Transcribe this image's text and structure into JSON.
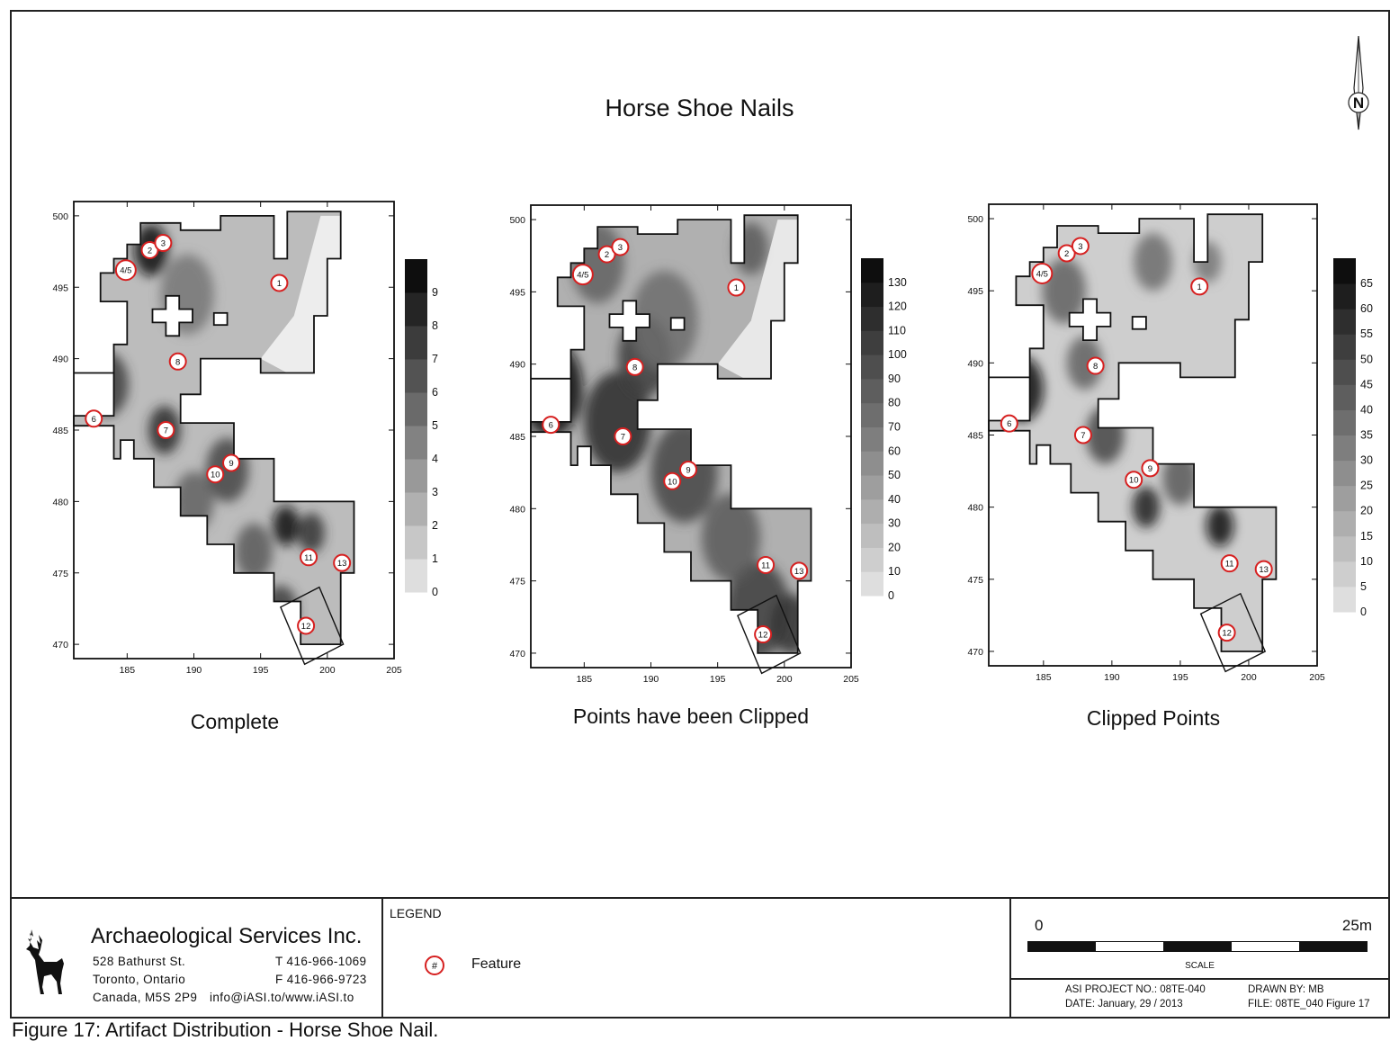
{
  "title": "Horse Shoe Nails",
  "panels": [
    {
      "caption": "Complete",
      "colorbar": {
        "ticks": [
          0,
          1,
          2,
          3,
          4,
          5,
          6,
          7,
          8,
          9
        ]
      }
    },
    {
      "caption": "Points have been Clipped",
      "colorbar": {
        "ticks": [
          0,
          10,
          20,
          30,
          40,
          50,
          60,
          70,
          80,
          90,
          100,
          110,
          120,
          130
        ]
      }
    },
    {
      "caption": "Clipped Points",
      "colorbar": {
        "ticks": [
          0,
          5,
          10,
          15,
          20,
          25,
          30,
          35,
          40,
          45,
          50,
          55,
          60,
          65
        ]
      }
    }
  ],
  "chart_data": {
    "type": "heatmap",
    "x_ticks": [
      185,
      190,
      195,
      200,
      205
    ],
    "y_ticks": [
      470,
      475,
      480,
      485,
      490,
      495,
      500
    ],
    "xlim": [
      181,
      205
    ],
    "ylim": [
      469,
      501
    ],
    "features": [
      {
        "label": "1",
        "x": 196.4,
        "y": 495.3
      },
      {
        "label": "2",
        "x": 186.7,
        "y": 497.6
      },
      {
        "label": "3",
        "x": 187.7,
        "y": 498.1
      },
      {
        "label": "4/5",
        "x": 184.9,
        "y": 496.2
      },
      {
        "label": "6",
        "x": 182.5,
        "y": 485.8
      },
      {
        "label": "7",
        "x": 187.9,
        "y": 485.0
      },
      {
        "label": "8",
        "x": 188.8,
        "y": 489.8
      },
      {
        "label": "9",
        "x": 192.8,
        "y": 482.7
      },
      {
        "label": "10",
        "x": 191.6,
        "y": 481.9
      },
      {
        "label": "11",
        "x": 198.6,
        "y": 476.1
      },
      {
        "label": "12",
        "x": 198.4,
        "y": 471.3
      },
      {
        "label": "13",
        "x": 201.1,
        "y": 475.7
      }
    ],
    "colormap": "light-gray-to-black"
  },
  "footer": {
    "company": "Archaeological Services Inc.",
    "address_lines": [
      "528 Bathurst St.",
      "Toronto, Ontario",
      "Canada, M5S 2P9"
    ],
    "contact_lines": [
      "T 416-966-1069",
      "F 416-966-9723",
      "info@iASI.to/www.iASI.to"
    ],
    "legend_title": "LEGEND",
    "legend_symbol": "#",
    "legend_item": "Feature",
    "scale_zero": "0",
    "scale_max": "25m",
    "scale_label": "SCALE",
    "project_no": "ASI PROJECT NO.: 08TE-040",
    "date": "DATE: January, 29 / 2013",
    "drawn_by": "DRAWN BY: MB",
    "file": "FILE: 08TE_040 Figure 17"
  },
  "north_label": "N",
  "figure_caption": "Figure 17: Artifact Distribution - Horse Shoe Nail.",
  "colors": {
    "feature_ring": "#d62020",
    "frame": "#222222"
  }
}
